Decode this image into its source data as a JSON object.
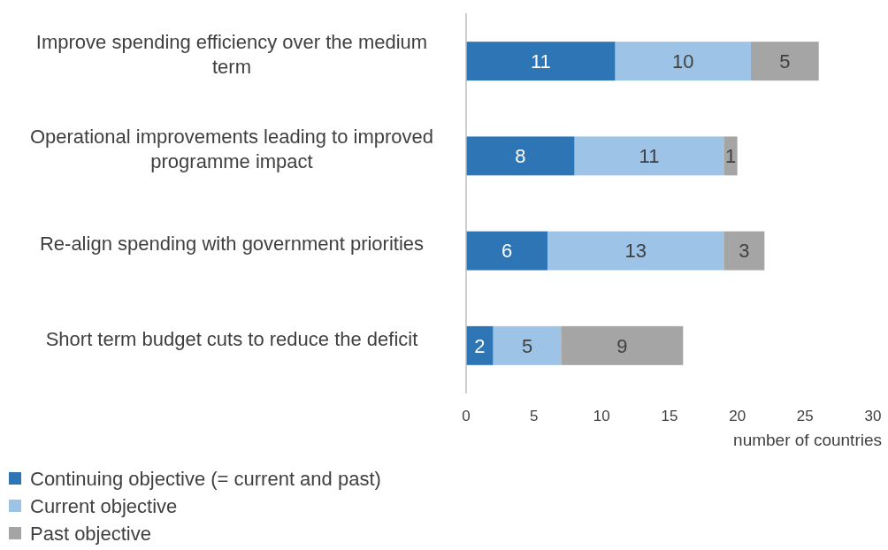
{
  "chart_data": {
    "type": "bar",
    "orientation": "horizontal",
    "stacked": true,
    "categories": [
      "Improve spending efficiency over the medium term",
      "Operational improvements leading to improved programme impact",
      "Re-align spending with government priorities",
      "Short term budget cuts to reduce the deficit"
    ],
    "series": [
      {
        "name": "Continuing objective (= current and past)",
        "color": "#2e75b6",
        "values": [
          11,
          8,
          6,
          2
        ]
      },
      {
        "name": "Current objective",
        "color": "#9dc3e6",
        "values": [
          10,
          11,
          13,
          5
        ]
      },
      {
        "name": "Past objective",
        "color": "#a5a5a5",
        "values": [
          5,
          1,
          3,
          9
        ]
      }
    ],
    "xlim": [
      0,
      30
    ],
    "xticks": [
      0,
      5,
      10,
      15,
      20,
      25,
      30
    ],
    "xlabel": "number of countries",
    "data_labels": true,
    "grid": false,
    "legend": "bottom left"
  }
}
